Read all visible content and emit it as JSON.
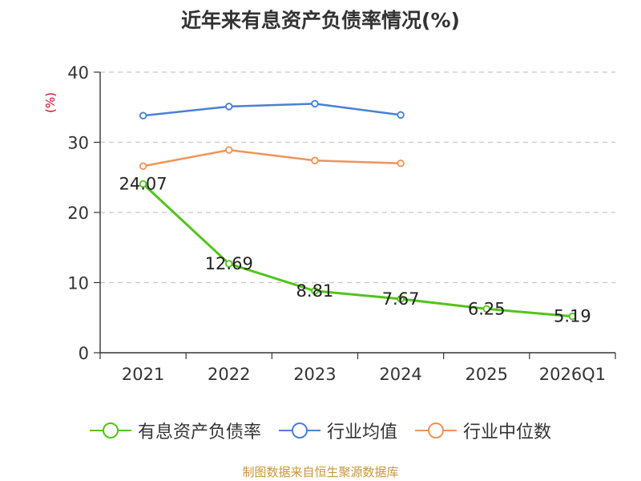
{
  "chart_data": {
    "type": "line",
    "title": "近年来有息资产负债率情况(%)",
    "ylabel": "(%)",
    "xlabel": "",
    "categories": [
      "2021",
      "2022",
      "2023",
      "2024",
      "2025",
      "2026Q1"
    ],
    "ylim": [
      0,
      40
    ],
    "yticks": [
      0,
      10,
      20,
      30,
      40
    ],
    "grid": true,
    "legend_position": "bottom",
    "series": [
      {
        "name": "有息资产负债率",
        "color": "#52c41a",
        "values": [
          24.07,
          12.69,
          8.81,
          7.67,
          6.25,
          5.19
        ],
        "labels": [
          "24.07",
          "12.69",
          "8.81",
          "7.67",
          "6.25",
          "5.19"
        ]
      },
      {
        "name": "行业均值",
        "color": "#4a7fd8",
        "values": [
          33.8,
          35.1,
          35.5,
          33.9,
          null,
          null
        ]
      },
      {
        "name": "行业中位数",
        "color": "#f0935a",
        "values": [
          26.6,
          28.9,
          27.4,
          27.0,
          null,
          null
        ]
      }
    ]
  },
  "source": "制图数据来自恒生聚源数据库"
}
